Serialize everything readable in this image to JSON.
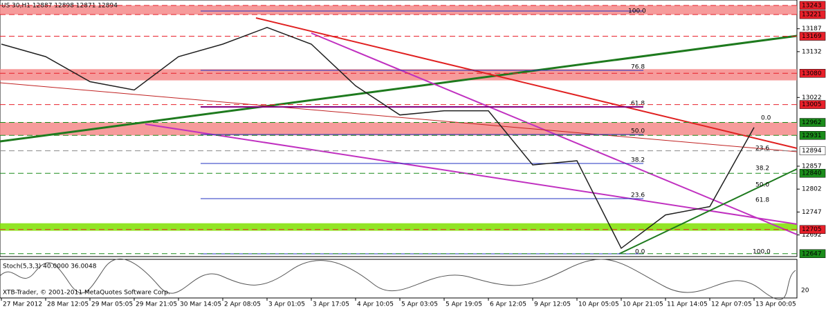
{
  "chart_data": {
    "type": "line",
    "title": "US 30,H1  12887 12898 12871 12894",
    "categories": [
      "27 Mar 2012",
      "28 Mar 12:05",
      "29 Mar 05:05",
      "29 Mar 21:05",
      "30 Mar 14:05",
      "2 Apr 08:05",
      "3 Apr 01:05",
      "3 Apr 17:05",
      "4 Apr 10:05",
      "5 Apr 03:05",
      "5 Apr 19:05",
      "6 Apr 12:05",
      "9 Apr 12:05",
      "10 Apr 05:05",
      "10 Apr 21:05",
      "11 Apr 14:05",
      "12 Apr 07:05",
      "13 Apr 00:05"
    ],
    "series": [
      {
        "name": "US 30,H1",
        "color": "#1f1f1f",
        "values": [
          13150,
          13120,
          13060,
          13040,
          13120,
          13150,
          13190,
          13150,
          13050,
          12980,
          12990,
          12990,
          12860,
          12870,
          12660,
          12740,
          12760,
          12950
        ]
      }
    ],
    "ylim": [
      12640,
      13256
    ],
    "yticks": [
      13187,
      13132,
      13022,
      12857,
      12802,
      12747,
      12692
    ],
    "levels": [
      {
        "value": 13243,
        "color": "#e8202a"
      },
      {
        "value": 13221,
        "color": "#e8202a"
      },
      {
        "value": 13169,
        "color": "#e8202a"
      },
      {
        "value": 13080,
        "color": "#e8202a"
      },
      {
        "value": 13005,
        "color": "#e8202a"
      },
      {
        "value": 12962,
        "color": "#1a8c1a"
      },
      {
        "value": 12931,
        "color": "#1a8c1a"
      },
      {
        "value": 12894,
        "color": "#ffffff"
      },
      {
        "value": 12840,
        "color": "#1a8c1a"
      },
      {
        "value": 12705,
        "color": "#e8202a"
      },
      {
        "value": 12647,
        "color": "#1a8c1a"
      }
    ],
    "zones": [
      {
        "range": [
          13221,
          13243
        ],
        "color": "#f58a8a"
      },
      {
        "range": [
          13063,
          13090
        ],
        "color": "#f58a8a"
      },
      {
        "range": [
          12931,
          12962
        ],
        "color": "#f58a8a"
      },
      {
        "range": [
          12702,
          12720
        ],
        "color": "#7fe000"
      }
    ],
    "fib_left": [
      "100.0",
      "76.8",
      "61.8",
      "50.0",
      "38.2",
      "23.6",
      "0.0"
    ],
    "fib_right": [
      "0.0",
      "23.6",
      "38.2",
      "50.0",
      "61.8",
      "100.0"
    ],
    "stoch_label": "Stoch(5,3,3) 40.0000 36.0048",
    "stoch_tick": "20",
    "copyright": "XTB-Trader, © 2001-2011 MetaQuotes Software Corp."
  }
}
